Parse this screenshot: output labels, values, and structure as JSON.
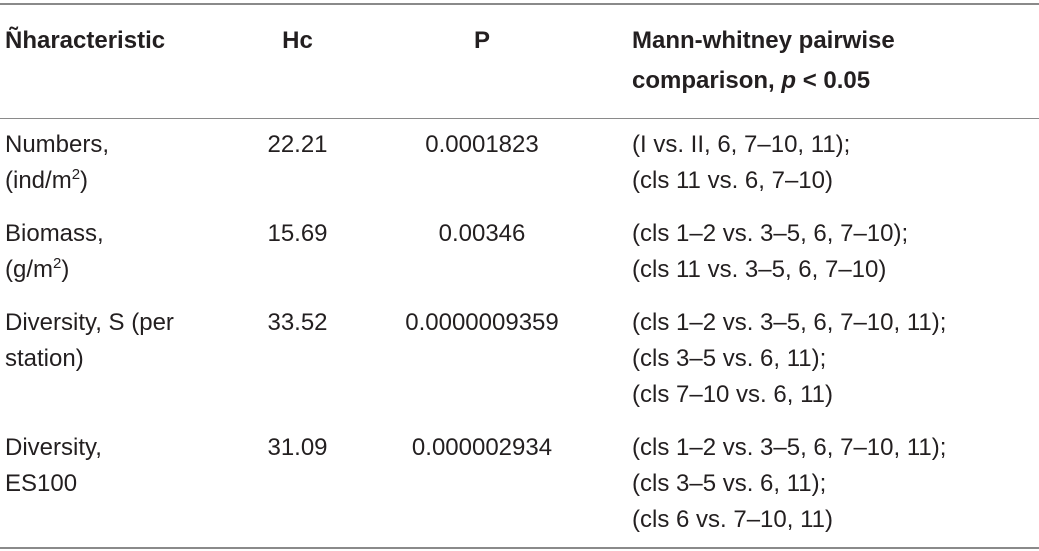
{
  "table": {
    "header": [
      [
        [
          "Ñharacteristic"
        ]
      ],
      [
        [
          "Hc"
        ]
      ],
      [
        [
          "P"
        ]
      ],
      [
        [
          "Mann-whitney pairwise"
        ],
        [
          "comparison, ",
          {
            "text": "p",
            "format": "italic"
          },
          " < 0.05"
        ]
      ]
    ],
    "rows": [
      [
        [
          [
            "Numbers,"
          ],
          [
            "(ind/m",
            {
              "text": "2",
              "format": "sup"
            },
            ")"
          ]
        ],
        [
          [
            "22.21"
          ]
        ],
        [
          [
            "0.0001823"
          ]
        ],
        [
          [
            "(I vs. II, 6, 7–10, 11);"
          ],
          [
            "(cls 11 vs. 6, 7–10)"
          ]
        ]
      ],
      [
        [
          [
            "Biomass,"
          ],
          [
            "(g/m",
            {
              "text": "2",
              "format": "sup"
            },
            ")"
          ]
        ],
        [
          [
            "15.69"
          ]
        ],
        [
          [
            "0.00346"
          ]
        ],
        [
          [
            "(cls 1–2 vs. 3–5, 6, 7–10);"
          ],
          [
            "(cls 11 vs. 3–5, 6, 7–10)"
          ]
        ]
      ],
      [
        [
          [
            "Diversity, S (per"
          ],
          [
            "station)"
          ]
        ],
        [
          [
            "33.52"
          ]
        ],
        [
          [
            "0.0000009359"
          ]
        ],
        [
          [
            "(cls 1–2 vs. 3–5, 6, 7–10, 11);"
          ],
          [
            "(cls 3–5 vs. 6, 11);"
          ],
          [
            "(cls 7–10 vs. 6, 11)"
          ]
        ]
      ],
      [
        [
          [
            "Diversity,"
          ],
          [
            "ES100"
          ]
        ],
        [
          [
            "31.09"
          ]
        ],
        [
          [
            "0.000002934"
          ]
        ],
        [
          [
            "(cls 1–2 vs. 3–5, 6, 7–10, 11);"
          ],
          [
            "(cls 3–5 vs. 6, 11);"
          ],
          [
            "(cls 6 vs. 7–10, 11)"
          ]
        ]
      ]
    ]
  }
}
